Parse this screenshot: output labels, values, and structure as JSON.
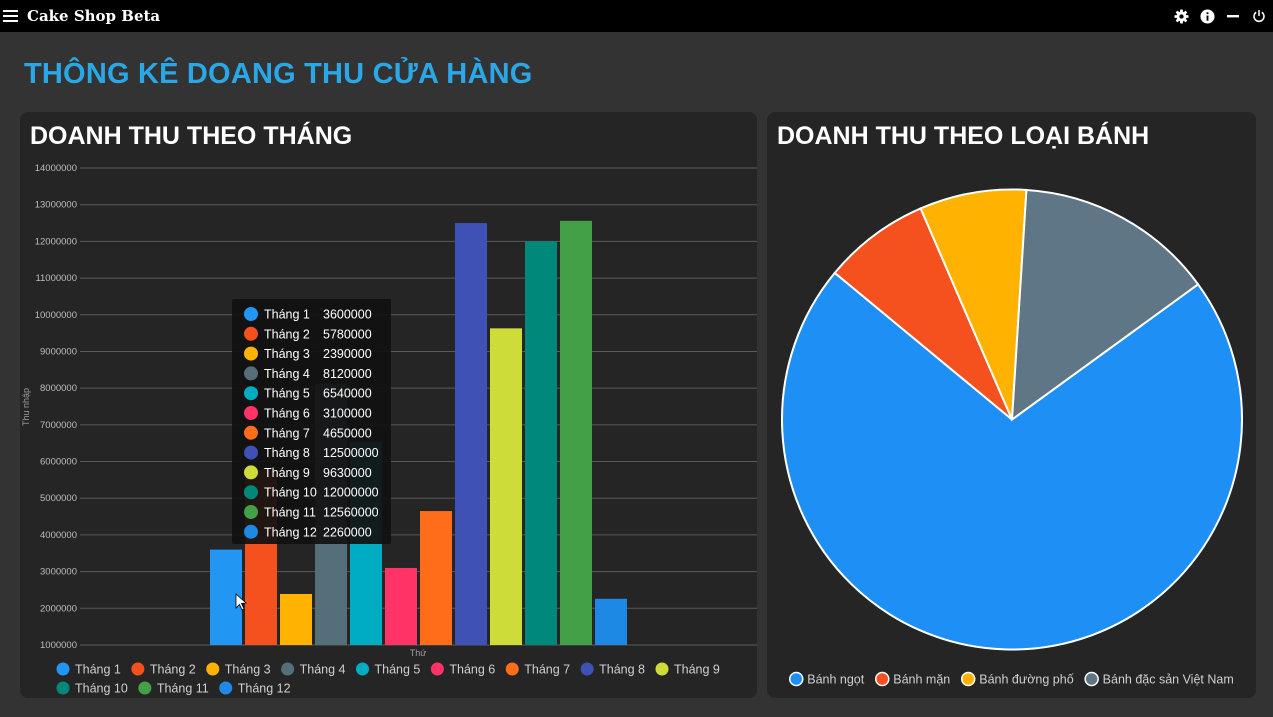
{
  "app": {
    "title": "Cake Shop Beta"
  },
  "page": {
    "title": "THÔNG KÊ DOANG THU CỬA HÀNG"
  },
  "colors": {
    "accent": "#29a8e8"
  },
  "titlebar_icons": [
    "settings-icon",
    "info-icon",
    "minimize-icon",
    "power-icon"
  ],
  "bar_panel": {
    "title": "DOANH THU THEO THÁNG"
  },
  "pie_panel": {
    "title": "DOANH THU THEO LOẠI BÁNH"
  },
  "chart_data": [
    {
      "type": "bar",
      "categories": [
        "Tháng 1",
        "Tháng 2",
        "Tháng 3",
        "Tháng 4",
        "Tháng 5",
        "Tháng 6",
        "Tháng 7",
        "Tháng 8",
        "Tháng 9",
        "Tháng 10",
        "Tháng 11",
        "Tháng 12"
      ],
      "values": [
        3600000,
        5780000,
        2390000,
        8120000,
        6540000,
        3100000,
        4650000,
        12500000,
        9630000,
        12000000,
        12560000,
        2260000
      ],
      "colors": [
        "#2196f3",
        "#f4511e",
        "#ffb300",
        "#546e7a",
        "#00acc1",
        "#ff3366",
        "#ff6d1a",
        "#3f51b5",
        "#cddc39",
        "#00897b",
        "#43a047",
        "#1e88e5"
      ],
      "xlabel": "Thứ",
      "ylabel": "Thu nhập",
      "ylim": [
        1000000,
        14000000
      ],
      "yticks": [
        "1000000",
        "2000000",
        "3000000",
        "4000000",
        "5000000",
        "6000000",
        "7000000",
        "8000000",
        "9000000",
        "10000000",
        "11000000",
        "12000000",
        "13000000",
        "14000000"
      ],
      "grid": true,
      "legend": "bottom",
      "tooltip_visible": true
    },
    {
      "type": "pie",
      "labels": [
        "Bánh ngọt",
        "Bánh mặn",
        "Bánh đường phố",
        "Bánh đặc sản Việt Nam"
      ],
      "values": [
        71,
        7.5,
        7.5,
        14
      ],
      "colors": [
        "#1e90f5",
        "#f4511e",
        "#ffb300",
        "#5f7686"
      ],
      "legend": "bottom"
    }
  ]
}
